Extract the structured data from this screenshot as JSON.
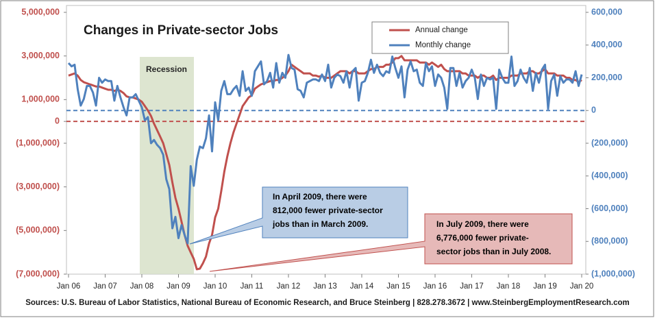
{
  "chart_data": {
    "type": "line",
    "title": "Changes in Private-sector Jobs",
    "source": "Sources: U.S. Bureau of Labor Statistics, National Bureau of Economic Research, and Bruce Steinberg | 828.278.3672 | www.SteinbergEmploymentResearch.com",
    "recession_label": "Recession",
    "annotations": [
      {
        "lines": [
          "In April 2009, there were",
          "812,000  fewer private-sector",
          "jobs than in March 2009."
        ],
        "color": "#b9cde5"
      },
      {
        "lines": [
          "In July 2009, there were",
          "6,776,000  fewer private-",
          "sector jobs than in July 2008."
        ],
        "color": "#e6b9b8"
      }
    ],
    "categories": [
      "Jan 06",
      null,
      null,
      null,
      null,
      null,
      null,
      null,
      null,
      null,
      null,
      null,
      "Jan 07",
      null,
      null,
      null,
      null,
      null,
      null,
      null,
      null,
      null,
      null,
      null,
      "Jan 08",
      null,
      null,
      null,
      null,
      null,
      null,
      null,
      null,
      null,
      null,
      null,
      "Jan 09",
      null,
      null,
      null,
      null,
      null,
      null,
      null,
      null,
      null,
      null,
      null,
      "Jan 10",
      null,
      null,
      null,
      null,
      null,
      null,
      null,
      null,
      null,
      null,
      null,
      "Jan 11",
      null,
      null,
      null,
      null,
      null,
      null,
      null,
      null,
      null,
      null,
      null,
      "Jan 12",
      null,
      null,
      null,
      null,
      null,
      null,
      null,
      null,
      null,
      null,
      null,
      "Jan 13",
      null,
      null,
      null,
      null,
      null,
      null,
      null,
      null,
      null,
      null,
      null,
      "Jan 14",
      null,
      null,
      null,
      null,
      null,
      null,
      null,
      null,
      null,
      null,
      null,
      "Jan 15",
      null,
      null,
      null,
      null,
      null,
      null,
      null,
      null,
      null,
      null,
      null,
      "Jan 16",
      null,
      null,
      null,
      null,
      null,
      null,
      null,
      null,
      null,
      null,
      null,
      "Jan 17",
      null,
      null,
      null,
      null,
      null,
      null,
      null,
      null,
      null,
      null,
      null,
      "Jan 18",
      null,
      null,
      null,
      null,
      null,
      null,
      null,
      null,
      null,
      null,
      null,
      "Jan 19",
      null,
      null,
      null,
      null,
      null,
      null,
      null,
      null,
      null,
      null,
      null,
      "Jan 20"
    ],
    "series": [
      {
        "name": "Annual change",
        "color": "#c0504d",
        "axis": "y",
        "values": [
          2100000,
          2150000,
          2200000,
          2100000,
          1900000,
          1800000,
          1750000,
          1700000,
          1650000,
          1600000,
          1600000,
          1550000,
          1500000,
          1450000,
          1450000,
          1400000,
          1450000,
          1400000,
          1300000,
          1150000,
          1100000,
          1100000,
          1050000,
          1000000,
          900000,
          700000,
          500000,
          250000,
          -100000,
          -400000,
          -700000,
          -1000000,
          -1500000,
          -2000000,
          -2800000,
          -3500000,
          -4000000,
          -4600000,
          -5200000,
          -5700000,
          -6000000,
          -6300000,
          -6776000,
          -6750000,
          -6500000,
          -6200000,
          -5600000,
          -5200000,
          -4400000,
          -4000000,
          -3200000,
          -2300000,
          -1600000,
          -1000000,
          -500000,
          -100000,
          300000,
          700000,
          900000,
          1100000,
          1200000,
          1500000,
          1600000,
          1700000,
          1750000,
          1800000,
          1850000,
          1850000,
          1900000,
          1900000,
          2000000,
          2100000,
          2300000,
          2600000,
          2500000,
          2400000,
          2300000,
          2200000,
          2200000,
          2200000,
          2100000,
          2100000,
          2050000,
          2100000,
          2000000,
          2000000,
          2000000,
          2100000,
          2200000,
          2300000,
          2300000,
          2300000,
          2200000,
          2300000,
          2300000,
          2200000,
          2200000,
          2200000,
          2300000,
          2400000,
          2400000,
          2500000,
          2500000,
          2500000,
          2600000,
          2600000,
          2700000,
          2900000,
          2900000,
          3000000,
          2800000,
          2800000,
          2800000,
          2800000,
          2800000,
          2700000,
          2700000,
          2700000,
          2600000,
          2700000,
          2600000,
          2500000,
          2600000,
          2400000,
          2300000,
          2300000,
          2300000,
          2300000,
          2300000,
          2200000,
          2200000,
          2100000,
          2100000,
          2100000,
          2000000,
          2100000,
          2100000,
          2000000,
          2000000,
          2100000,
          1900000,
          2000000,
          2000000,
          2000000,
          2000000,
          2100000,
          2100000,
          2100000,
          2200000,
          2200000,
          2200000,
          2300000,
          2300000,
          2200000,
          2200000,
          2300000,
          2400000,
          2200000,
          2200000,
          2200000,
          2100000,
          2100000,
          2100000,
          2000000,
          2000000,
          1900000,
          1900000,
          1800000,
          1900000
        ]
      },
      {
        "name": "Monthly change",
        "color": "#4f81bd",
        "axis": "y2",
        "values": [
          290000,
          270000,
          280000,
          130000,
          30000,
          70000,
          150000,
          150000,
          110000,
          30000,
          200000,
          170000,
          190000,
          180000,
          180000,
          60000,
          150000,
          80000,
          20000,
          -30000,
          80000,
          80000,
          100000,
          60000,
          20000,
          -60000,
          -40000,
          -200000,
          -180000,
          -210000,
          -230000,
          -270000,
          -420000,
          -480000,
          -720000,
          -650000,
          -780000,
          -700000,
          -760000,
          -812000,
          -340000,
          -460000,
          -300000,
          -220000,
          -230000,
          -170000,
          -30000,
          -250000,
          50000,
          -60000,
          120000,
          180000,
          100000,
          100000,
          130000,
          150000,
          90000,
          240000,
          120000,
          140000,
          90000,
          240000,
          270000,
          300000,
          160000,
          180000,
          230000,
          140000,
          290000,
          170000,
          230000,
          200000,
          340000,
          260000,
          250000,
          130000,
          120000,
          80000,
          170000,
          180000,
          190000,
          190000,
          180000,
          220000,
          180000,
          280000,
          140000,
          200000,
          220000,
          210000,
          170000,
          240000,
          140000,
          240000,
          260000,
          60000,
          170000,
          180000,
          230000,
          310000,
          230000,
          280000,
          230000,
          210000,
          240000,
          230000,
          330000,
          260000,
          200000,
          270000,
          80000,
          250000,
          300000,
          240000,
          250000,
          170000,
          150000,
          290000,
          240000,
          270000,
          150000,
          220000,
          200000,
          140000,
          10000,
          260000,
          260000,
          150000,
          230000,
          140000,
          180000,
          200000,
          250000,
          200000,
          70000,
          220000,
          150000,
          200000,
          190000,
          200000,
          10000,
          250000,
          200000,
          170000,
          170000,
          330000,
          150000,
          180000,
          250000,
          200000,
          170000,
          260000,
          120000,
          230000,
          170000,
          250000,
          280000,
          10000,
          180000,
          220000,
          90000,
          210000,
          170000,
          190000,
          190000,
          170000,
          240000,
          150000,
          220000
        ]
      }
    ],
    "ylim": [
      -7000000,
      5000000
    ],
    "yticks": [
      {
        "value": -7000000,
        "label": "(7,000,000)"
      },
      {
        "value": -5000000,
        "label": "(5,000,000)"
      },
      {
        "value": -3000000,
        "label": "(3,000,000)"
      },
      {
        "value": -1000000,
        "label": "(1,000,000)"
      },
      0,
      {
        "value": 1000000,
        "label": "1,000,000"
      },
      {
        "value": 3000000,
        "label": "3,000,000"
      },
      {
        "value": 5000000,
        "label": "5,000,000"
      }
    ],
    "y2lim": [
      -1000000,
      600000
    ],
    "y2ticks": [
      {
        "value": -1000000,
        "label": "(1,000,000)"
      },
      {
        "value": -800000,
        "label": "(800,000)"
      },
      {
        "value": -600000,
        "label": "(600,000)"
      },
      {
        "value": -400000,
        "label": "(400,000)"
      },
      {
        "value": -200000,
        "label": "(200,000)"
      },
      0,
      {
        "value": 200000,
        "label": "200,000"
      },
      {
        "value": 400000,
        "label": "400,000"
      },
      {
        "value": 600000,
        "label": "600,000"
      }
    ],
    "y_color": "#c0504d",
    "y2_color": "#4f81bd",
    "legend": "top-right",
    "grid": false
  }
}
